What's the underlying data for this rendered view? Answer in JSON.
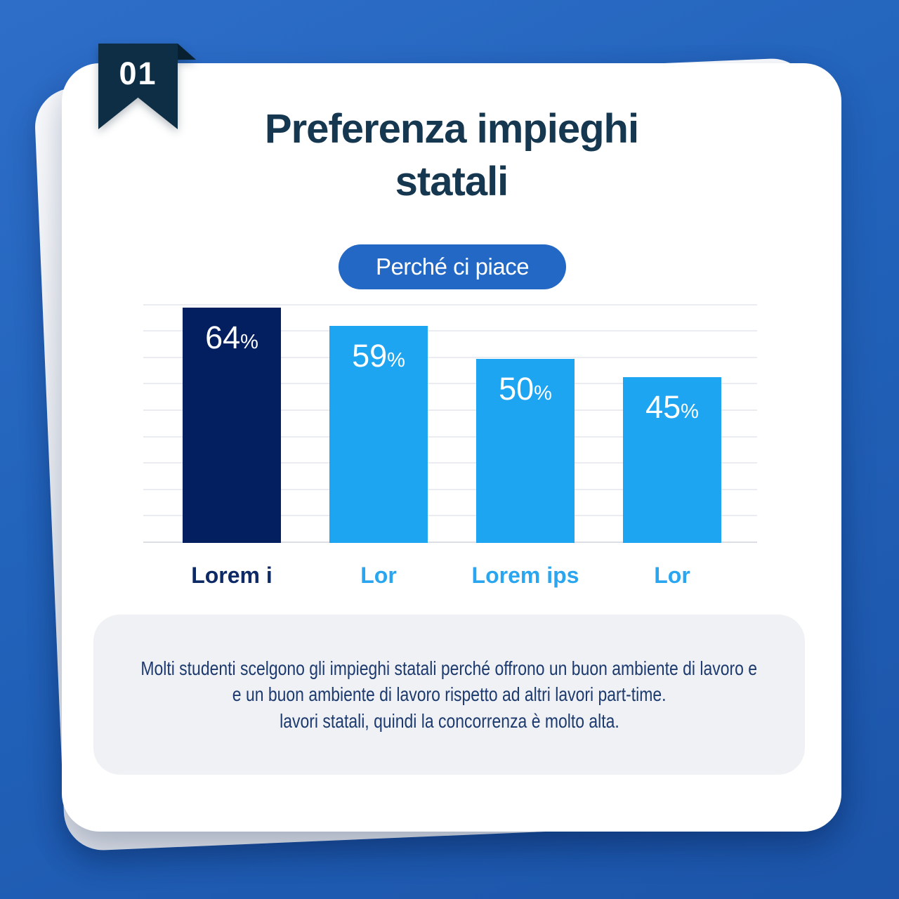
{
  "badge": {
    "number": "01"
  },
  "title": {
    "line1": "Preferenza impieghi",
    "line2": "statali"
  },
  "pill": {
    "label": "Perché ci piace"
  },
  "chart_data": {
    "type": "bar",
    "title": "Preferenza impieghi statali",
    "subtitle": "Perché ci piace",
    "categories": [
      "Lorem i",
      "Lor",
      "Lorem ips",
      "Lor"
    ],
    "values": [
      64,
      59,
      50,
      45
    ],
    "value_suffix": "%",
    "value_label_position": "inside-top",
    "ylim": [
      0,
      65
    ],
    "grid": "horizontal",
    "gridline_count": 10,
    "legend": "none",
    "bar_colors": [
      "#041f60",
      "#1ea5f2",
      "#1ea5f2",
      "#1ea5f2"
    ],
    "category_label_colors": [
      "#0d2a66",
      "#2aa6f0",
      "#2aa6f0",
      "#2aa6f0"
    ]
  },
  "description": {
    "lines": [
      "Molti studenti scelgono gli impieghi statali perché offrono un buon ambiente di lavoro e",
      "e un buon ambiente di lavoro rispetto ad altri lavori part-time.",
      "lavori statali, quindi la concorrenza è molto alta."
    ]
  },
  "colors": {
    "background_top": "#2e6ec9",
    "background_bottom": "#1c55a9",
    "card": "#ffffff",
    "back_card": "#eef0f4",
    "bookmark": "#0d2e44",
    "bookmark_fold": "#08202f",
    "title_text": "#15374f",
    "pill_bg": "#2368c4",
    "pill_text": "#ffffff",
    "bar_navy": "#041f60",
    "bar_blue": "#1ea5f2",
    "gridline": "#ebecf1",
    "description_bg": "#f0f1f5",
    "description_text": "#1c3a6e"
  }
}
